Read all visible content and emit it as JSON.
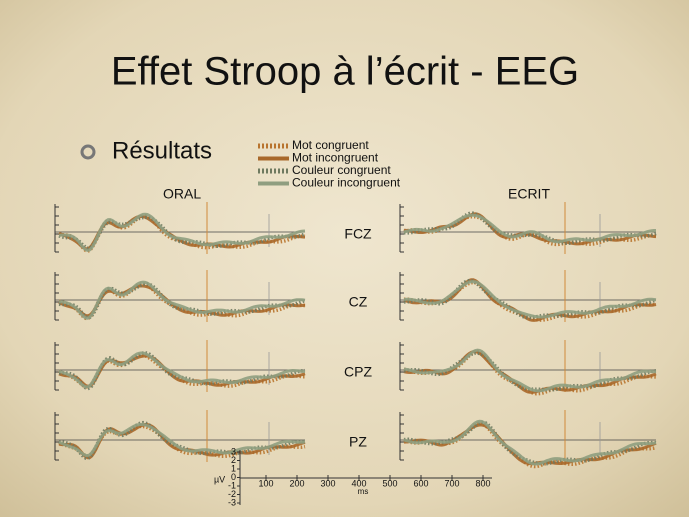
{
  "title": "Effet Stroop à l’écrit - EEG",
  "bullet": "Résultats",
  "legend": [
    {
      "label": "Mot congruent",
      "color": "#b8742e",
      "style": "dotted"
    },
    {
      "label": "Mot incongruent",
      "color": "#a8682a",
      "style": "solid"
    },
    {
      "label": "Couleur congruent",
      "color": "#6f7a60",
      "style": "dotted"
    },
    {
      "label": "Couleur incongruent",
      "color": "#8f9e80",
      "style": "solid"
    }
  ],
  "columns": [
    "ORAL",
    "ECRIT"
  ],
  "electrodes": [
    "FCZ",
    "CZ",
    "CPZ",
    "PZ"
  ],
  "scale": {
    "uv_label": "µV",
    "uv_ticks": [
      "3",
      "2",
      "1",
      "0",
      "-1",
      "-2",
      "-3"
    ],
    "ms_label": "ms",
    "ms_ticks": [
      "100",
      "200",
      "300",
      "400",
      "500",
      "600",
      "700",
      "800"
    ]
  }
}
